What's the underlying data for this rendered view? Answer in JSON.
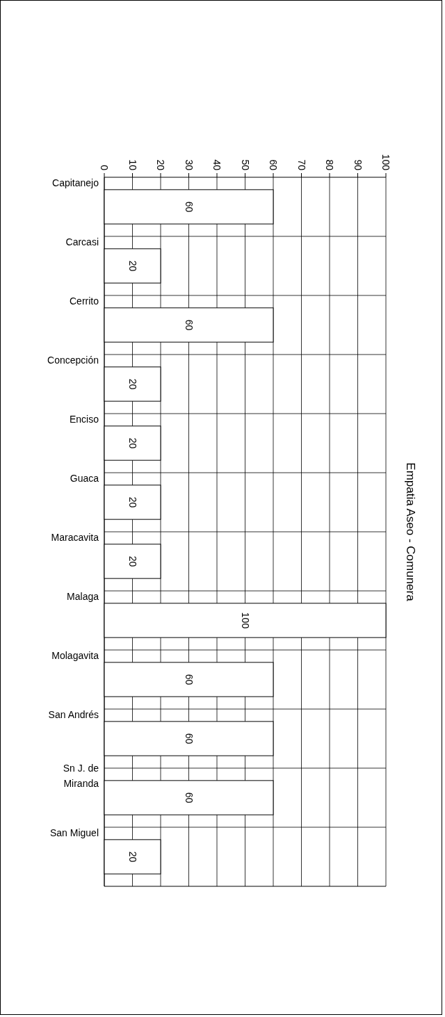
{
  "chart_data": {
    "type": "bar",
    "orientation": "horizontal",
    "title": "Empatia Aseo - Comunera",
    "categories": [
      "Capitanejo",
      "Carcasi",
      "Cerrito",
      "Concepción",
      "Enciso",
      "Guaca",
      "Maracavita",
      "Malaga",
      "Molagavita",
      "San Andrés",
      "Sn J. de Miranda",
      "San Miguel"
    ],
    "values": [
      60,
      20,
      60,
      20,
      20,
      20,
      20,
      100,
      60,
      60,
      60,
      20
    ],
    "color": "#ffffff",
    "xlim": [
      0,
      100
    ],
    "xticks": [
      0,
      10,
      20,
      30,
      40,
      50,
      60,
      70,
      80,
      90,
      100
    ],
    "grid": true,
    "data_labels": true
  }
}
